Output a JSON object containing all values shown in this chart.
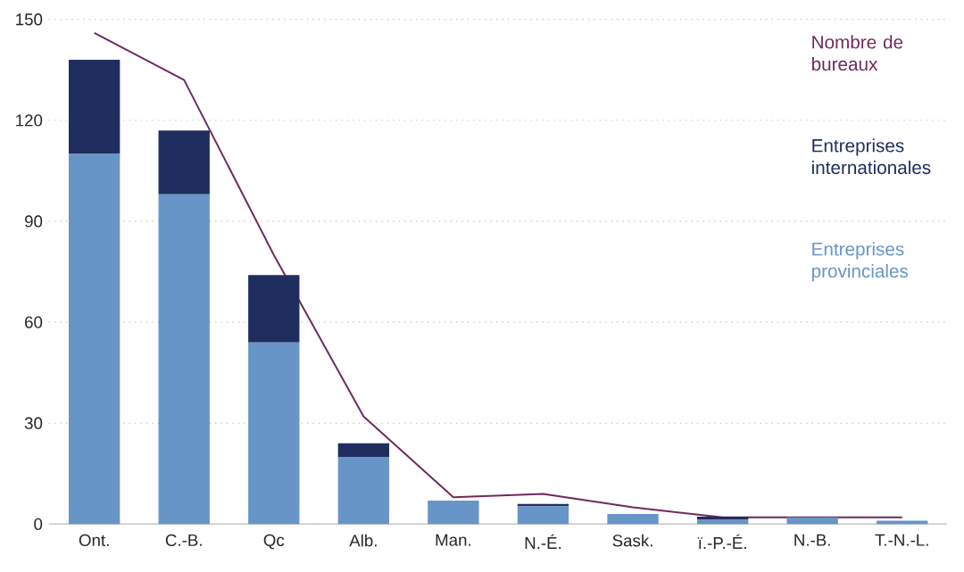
{
  "chart_data": {
    "type": "bar",
    "stacked": true,
    "categories": [
      "Ont.",
      "C.-B.",
      "Qc",
      "Alb.",
      "Man.",
      "N.-É.",
      "Sask.",
      "ï.-P.-É.",
      "N.-B.",
      "T.-N.-L."
    ],
    "series": [
      {
        "name": "Entreprises provinciales",
        "color": "#6795c8",
        "values": [
          110,
          98,
          54,
          20,
          7,
          5.3,
          3,
          1.3,
          2,
          1
        ]
      },
      {
        "name": "Entreprises internationales",
        "color": "#1f2e5f",
        "values": [
          28,
          19,
          20,
          4,
          0,
          0.7,
          0,
          0.9,
          0,
          0
        ]
      },
      {
        "name": "Nombre de bureaux",
        "type": "line",
        "color": "#6e2a5e",
        "values": [
          146,
          132,
          80,
          32,
          8,
          9,
          5,
          2,
          2,
          2
        ]
      }
    ],
    "ylim": [
      0,
      150
    ],
    "yticks": [
      0,
      30,
      60,
      90,
      120,
      150
    ],
    "grid": "y",
    "legend": "top right",
    "marker": "none",
    "line_style": "solid"
  }
}
